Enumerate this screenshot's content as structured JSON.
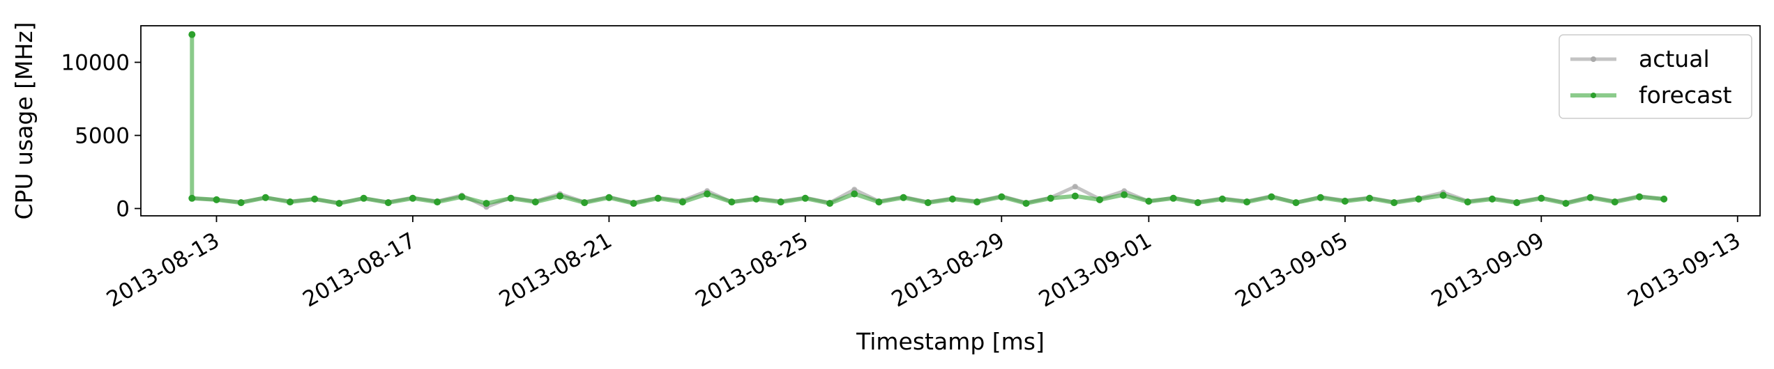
{
  "chart_data": {
    "type": "line",
    "xlabel": "Timestamp [ms]",
    "ylabel": "CPU usage [MHz]",
    "xlim": [
      "2013-08-11T11:00",
      "2013-09-13T11:00"
    ],
    "ylim": [
      -500,
      12500
    ],
    "x_ticks": [
      "2013-08-13",
      "2013-08-17",
      "2013-08-21",
      "2013-08-25",
      "2013-08-29",
      "2013-09-01",
      "2013-09-05",
      "2013-09-09",
      "2013-09-13"
    ],
    "y_ticks": [
      0,
      5000,
      10000
    ],
    "legend_position": "upper-right",
    "grid": false,
    "series": [
      {
        "name": "actual",
        "color": "#aaaaaa",
        "x": [
          "2013-08-12T12:00",
          "2013-08-13T00:00",
          "2013-08-13T12:00",
          "2013-08-14T00:00",
          "2013-08-14T12:00",
          "2013-08-15T00:00",
          "2013-08-15T12:00",
          "2013-08-16T00:00",
          "2013-08-16T12:00",
          "2013-08-17T00:00",
          "2013-08-17T12:00",
          "2013-08-18T00:00",
          "2013-08-18T12:00",
          "2013-08-19T00:00",
          "2013-08-19T12:00",
          "2013-08-20T00:00",
          "2013-08-20T12:00",
          "2013-08-21T00:00",
          "2013-08-21T12:00",
          "2013-08-22T00:00",
          "2013-08-22T12:00",
          "2013-08-23T00:00",
          "2013-08-23T12:00",
          "2013-08-24T00:00",
          "2013-08-24T12:00",
          "2013-08-25T00:00",
          "2013-08-25T12:00",
          "2013-08-26T00:00",
          "2013-08-26T12:00",
          "2013-08-27T00:00",
          "2013-08-27T12:00",
          "2013-08-28T00:00",
          "2013-08-28T12:00",
          "2013-08-29T00:00",
          "2013-08-29T12:00",
          "2013-08-30T00:00",
          "2013-08-30T12:00",
          "2013-08-31T00:00",
          "2013-08-31T12:00",
          "2013-09-01T00:00",
          "2013-09-01T12:00",
          "2013-09-02T00:00",
          "2013-09-02T12:00",
          "2013-09-03T00:00",
          "2013-09-03T12:00",
          "2013-09-04T00:00",
          "2013-09-04T12:00",
          "2013-09-05T00:00",
          "2013-09-05T12:00",
          "2013-09-06T00:00",
          "2013-09-06T12:00",
          "2013-09-07T00:00",
          "2013-09-07T12:00",
          "2013-09-08T00:00",
          "2013-09-08T12:00",
          "2013-09-09T00:00",
          "2013-09-09T12:00",
          "2013-09-10T00:00",
          "2013-09-10T12:00",
          "2013-09-11T00:00",
          "2013-09-11T12:00"
        ],
        "values": [
          700,
          600,
          450,
          750,
          500,
          650,
          380,
          700,
          450,
          750,
          500,
          900,
          100,
          750,
          500,
          1000,
          450,
          800,
          400,
          750,
          550,
          1200,
          450,
          700,
          500,
          750,
          400,
          1300,
          500,
          800,
          450,
          700,
          500,
          850,
          400,
          750,
          1500,
          650,
          1200,
          500,
          750,
          450,
          700,
          500,
          850,
          400,
          800,
          550,
          750,
          450,
          700,
          1100,
          500,
          700,
          450,
          750,
          400,
          800,
          500,
          850,
          650
        ]
      },
      {
        "name": "forecast",
        "color": "#2ca02c",
        "x": [
          "2013-08-12T12:00",
          "2013-08-12T12:00",
          "2013-08-13T00:00",
          "2013-08-13T12:00",
          "2013-08-14T00:00",
          "2013-08-14T12:00",
          "2013-08-15T00:00",
          "2013-08-15T12:00",
          "2013-08-16T00:00",
          "2013-08-16T12:00",
          "2013-08-17T00:00",
          "2013-08-17T12:00",
          "2013-08-18T00:00",
          "2013-08-18T12:00",
          "2013-08-19T00:00",
          "2013-08-19T12:00",
          "2013-08-20T00:00",
          "2013-08-20T12:00",
          "2013-08-21T00:00",
          "2013-08-21T12:00",
          "2013-08-22T00:00",
          "2013-08-22T12:00",
          "2013-08-23T00:00",
          "2013-08-23T12:00",
          "2013-08-24T00:00",
          "2013-08-24T12:00",
          "2013-08-25T00:00",
          "2013-08-25T12:00",
          "2013-08-26T00:00",
          "2013-08-26T12:00",
          "2013-08-27T00:00",
          "2013-08-27T12:00",
          "2013-08-28T00:00",
          "2013-08-28T12:00",
          "2013-08-29T00:00",
          "2013-08-29T12:00",
          "2013-08-30T00:00",
          "2013-08-30T12:00",
          "2013-08-31T00:00",
          "2013-08-31T12:00",
          "2013-09-01T00:00",
          "2013-09-01T12:00",
          "2013-09-02T00:00",
          "2013-09-02T12:00",
          "2013-09-03T00:00",
          "2013-09-03T12:00",
          "2013-09-04T00:00",
          "2013-09-04T12:00",
          "2013-09-05T00:00",
          "2013-09-05T12:00",
          "2013-09-06T00:00",
          "2013-09-06T12:00",
          "2013-09-07T00:00",
          "2013-09-07T12:00",
          "2013-09-08T00:00",
          "2013-09-08T12:00",
          "2013-09-09T00:00",
          "2013-09-09T12:00",
          "2013-09-10T00:00",
          "2013-09-10T12:00",
          "2013-09-11T00:00",
          "2013-09-11T12:00"
        ],
        "values": [
          11900,
          700,
          600,
          400,
          750,
          450,
          650,
          350,
          700,
          400,
          700,
          450,
          800,
          350,
          700,
          450,
          850,
          400,
          750,
          350,
          700,
          450,
          1000,
          450,
          650,
          450,
          700,
          350,
          1000,
          450,
          750,
          400,
          650,
          450,
          800,
          350,
          700,
          850,
          600,
          950,
          500,
          700,
          400,
          650,
          450,
          800,
          400,
          750,
          500,
          700,
          400,
          650,
          900,
          450,
          650,
          400,
          700,
          350,
          750,
          450,
          800,
          650
        ]
      }
    ]
  }
}
